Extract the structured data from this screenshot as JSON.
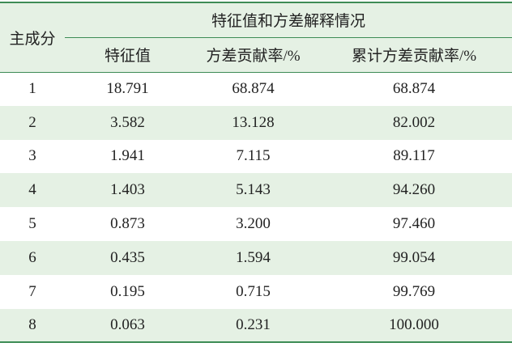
{
  "table": {
    "group_header": "特征值和方差解释情况",
    "header": [
      "主成分",
      "特征值",
      "方差贡献率/%",
      "累计方差贡献率/%"
    ],
    "rows": [
      [
        "1",
        "18.791",
        "68.874",
        "68.874"
      ],
      [
        "2",
        "3.582",
        "13.128",
        "82.002"
      ],
      [
        "3",
        "1.941",
        "7.115",
        "89.117"
      ],
      [
        "4",
        "1.403",
        "5.143",
        "94.260"
      ],
      [
        "5",
        "0.873",
        "3.200",
        "97.460"
      ],
      [
        "6",
        "0.435",
        "1.594",
        "99.054"
      ],
      [
        "7",
        "0.195",
        "0.715",
        "99.769"
      ],
      [
        "8",
        "0.063",
        "0.231",
        "100.000"
      ]
    ]
  }
}
